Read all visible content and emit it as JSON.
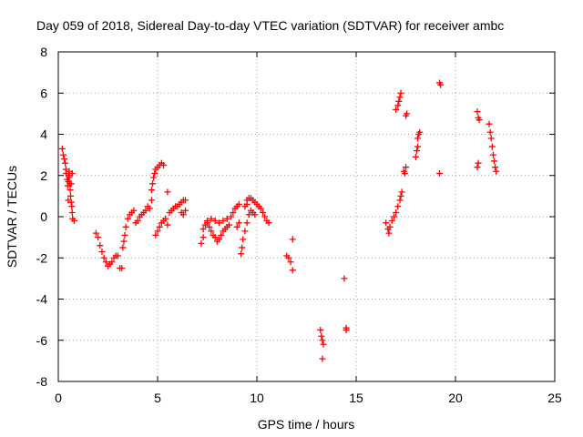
{
  "chart_data": {
    "type": "scatter",
    "title": "Day 059 of 2018, Sidereal Day-to-day VTEC variation (SDTVAR) for receiver ambc",
    "xlabel": "GPS time / hours",
    "ylabel": "SDTVAR / TECUs",
    "xlim": [
      0,
      25
    ],
    "ylim": [
      -8,
      8
    ],
    "xticks": [
      0,
      5,
      10,
      15,
      20,
      25
    ],
    "yticks": [
      -8,
      -6,
      -4,
      -2,
      0,
      2,
      4,
      6,
      8
    ],
    "grid": true,
    "marker": "+",
    "color": "#ff0000",
    "series": [
      {
        "points": [
          [
            0.2,
            3.3
          ],
          [
            0.25,
            3.0
          ],
          [
            0.3,
            2.8
          ],
          [
            0.35,
            2.6
          ],
          [
            0.38,
            2.3
          ],
          [
            0.4,
            2.1
          ],
          [
            0.45,
            1.8
          ],
          [
            0.48,
            1.5
          ],
          [
            0.5,
            1.7
          ],
          [
            0.52,
            2.0
          ],
          [
            0.55,
            1.9
          ],
          [
            0.58,
            1.6
          ],
          [
            0.6,
            1.3
          ],
          [
            0.62,
            1.0
          ],
          [
            0.65,
            0.7
          ],
          [
            0.68,
            0.5
          ],
          [
            0.7,
            0.2
          ],
          [
            0.72,
            -0.1
          ],
          [
            0.8,
            -0.2
          ],
          [
            0.7,
            2.1
          ],
          [
            0.65,
            1.6
          ],
          [
            0.55,
            2.2
          ],
          [
            0.5,
            0.8
          ],
          [
            1.9,
            -0.8
          ],
          [
            2.0,
            -1.0
          ],
          [
            2.1,
            -1.4
          ],
          [
            2.2,
            -1.7
          ],
          [
            2.3,
            -2.0
          ],
          [
            2.4,
            -2.2
          ],
          [
            2.5,
            -2.4
          ],
          [
            2.6,
            -2.3
          ],
          [
            2.7,
            -2.2
          ],
          [
            2.8,
            -2.0
          ],
          [
            2.9,
            -1.9
          ],
          [
            3.0,
            -1.9
          ],
          [
            3.1,
            -2.5
          ],
          [
            3.2,
            -2.5
          ],
          [
            3.25,
            -1.5
          ],
          [
            3.3,
            -1.2
          ],
          [
            3.35,
            -0.9
          ],
          [
            3.4,
            -0.5
          ],
          [
            3.5,
            -0.1
          ],
          [
            3.6,
            0.1
          ],
          [
            3.7,
            0.2
          ],
          [
            3.8,
            0.3
          ],
          [
            3.9,
            -0.3
          ],
          [
            4.0,
            -0.2
          ],
          [
            4.1,
            0.0
          ],
          [
            4.2,
            0.1
          ],
          [
            4.3,
            0.2
          ],
          [
            4.4,
            0.3
          ],
          [
            4.5,
            0.5
          ],
          [
            4.6,
            0.4
          ],
          [
            4.7,
            0.8
          ],
          [
            4.7,
            1.3
          ],
          [
            4.75,
            1.6
          ],
          [
            4.8,
            1.9
          ],
          [
            4.85,
            2.1
          ],
          [
            4.9,
            2.3
          ],
          [
            5.0,
            2.4
          ],
          [
            5.1,
            2.5
          ],
          [
            5.2,
            2.6
          ],
          [
            5.3,
            2.5
          ],
          [
            4.9,
            -0.9
          ],
          [
            5.0,
            -0.7
          ],
          [
            5.1,
            -0.5
          ],
          [
            5.2,
            -0.3
          ],
          [
            5.3,
            -0.2
          ],
          [
            5.4,
            -0.1
          ],
          [
            5.5,
            1.2
          ],
          [
            5.5,
            -0.4
          ],
          [
            5.6,
            0.2
          ],
          [
            5.7,
            0.3
          ],
          [
            5.8,
            0.4
          ],
          [
            5.9,
            0.5
          ],
          [
            6.0,
            0.5
          ],
          [
            6.1,
            0.6
          ],
          [
            6.2,
            0.7
          ],
          [
            6.3,
            0.8
          ],
          [
            6.4,
            0.8
          ],
          [
            6.2,
            0.2
          ],
          [
            6.3,
            0.1
          ],
          [
            6.4,
            0.3
          ],
          [
            7.2,
            -1.3
          ],
          [
            7.3,
            -1.0
          ],
          [
            7.3,
            -0.6
          ],
          [
            7.4,
            -0.4
          ],
          [
            7.5,
            -0.3
          ],
          [
            7.6,
            -0.5
          ],
          [
            7.7,
            -0.7
          ],
          [
            7.8,
            -0.9
          ],
          [
            7.9,
            -1.0
          ],
          [
            8.0,
            -1.2
          ],
          [
            8.1,
            -1.1
          ],
          [
            8.2,
            -0.9
          ],
          [
            8.3,
            -0.7
          ],
          [
            8.4,
            -0.6
          ],
          [
            8.5,
            -0.5
          ],
          [
            8.6,
            -0.4
          ],
          [
            7.5,
            -0.2
          ],
          [
            7.7,
            -0.1
          ],
          [
            7.9,
            -0.2
          ],
          [
            8.1,
            -0.3
          ],
          [
            8.3,
            -0.2
          ],
          [
            8.5,
            -0.1
          ],
          [
            8.7,
            0.0
          ],
          [
            8.8,
            0.2
          ],
          [
            8.9,
            0.4
          ],
          [
            9.0,
            0.5
          ],
          [
            9.1,
            0.6
          ],
          [
            9.0,
            -0.5
          ],
          [
            9.1,
            -0.3
          ],
          [
            9.2,
            -1.8
          ],
          [
            9.25,
            -1.5
          ],
          [
            9.3,
            -1.1
          ],
          [
            9.4,
            -0.7
          ],
          [
            9.5,
            -0.3
          ],
          [
            9.6,
            0.1
          ],
          [
            9.7,
            0.3
          ],
          [
            9.8,
            0.2
          ],
          [
            9.9,
            0.1
          ],
          [
            9.5,
            0.8
          ],
          [
            9.6,
            0.9
          ],
          [
            9.7,
            0.9
          ],
          [
            9.8,
            0.8
          ],
          [
            9.9,
            0.7
          ],
          [
            10.0,
            0.6
          ],
          [
            10.1,
            0.5
          ],
          [
            10.2,
            0.4
          ],
          [
            10.3,
            0.2
          ],
          [
            10.4,
            0.0
          ],
          [
            10.5,
            -0.2
          ],
          [
            10.6,
            -0.3
          ],
          [
            9.4,
            0.5
          ],
          [
            9.5,
            0.6
          ],
          [
            11.5,
            -1.9
          ],
          [
            11.6,
            -2.0
          ],
          [
            11.7,
            -2.2
          ],
          [
            11.8,
            -2.6
          ],
          [
            11.8,
            -1.1
          ],
          [
            13.2,
            -5.5
          ],
          [
            13.25,
            -5.8
          ],
          [
            13.3,
            -6.0
          ],
          [
            13.3,
            -6.9
          ],
          [
            13.35,
            -6.2
          ],
          [
            14.4,
            -3.0
          ],
          [
            14.5,
            -5.4
          ],
          [
            14.5,
            -5.5
          ],
          [
            16.5,
            -0.3
          ],
          [
            16.6,
            -0.6
          ],
          [
            16.65,
            -0.8
          ],
          [
            16.7,
            -0.5
          ],
          [
            16.8,
            -0.2
          ],
          [
            16.9,
            0.0
          ],
          [
            17.0,
            0.2
          ],
          [
            17.1,
            0.5
          ],
          [
            17.2,
            0.8
          ],
          [
            17.25,
            1.0
          ],
          [
            17.3,
            1.2
          ],
          [
            17.0,
            5.2
          ],
          [
            17.1,
            5.4
          ],
          [
            17.15,
            5.6
          ],
          [
            17.2,
            5.8
          ],
          [
            17.25,
            6.0
          ],
          [
            17.5,
            4.9
          ],
          [
            17.55,
            5.0
          ],
          [
            17.4,
            2.2
          ],
          [
            17.5,
            2.4
          ],
          [
            17.45,
            2.1
          ],
          [
            18.0,
            2.9
          ],
          [
            18.05,
            3.2
          ],
          [
            18.1,
            3.4
          ],
          [
            18.1,
            3.8
          ],
          [
            18.15,
            4.0
          ],
          [
            18.2,
            4.1
          ],
          [
            19.2,
            6.5
          ],
          [
            19.25,
            6.4
          ],
          [
            19.2,
            2.1
          ],
          [
            21.1,
            5.1
          ],
          [
            21.15,
            4.8
          ],
          [
            21.2,
            4.7
          ],
          [
            21.1,
            2.4
          ],
          [
            21.15,
            2.6
          ],
          [
            21.7,
            4.5
          ],
          [
            21.75,
            4.1
          ],
          [
            21.8,
            3.8
          ],
          [
            21.85,
            3.4
          ],
          [
            21.9,
            3.0
          ],
          [
            21.95,
            2.7
          ],
          [
            22.0,
            2.4
          ],
          [
            22.05,
            2.2
          ]
        ]
      }
    ]
  }
}
